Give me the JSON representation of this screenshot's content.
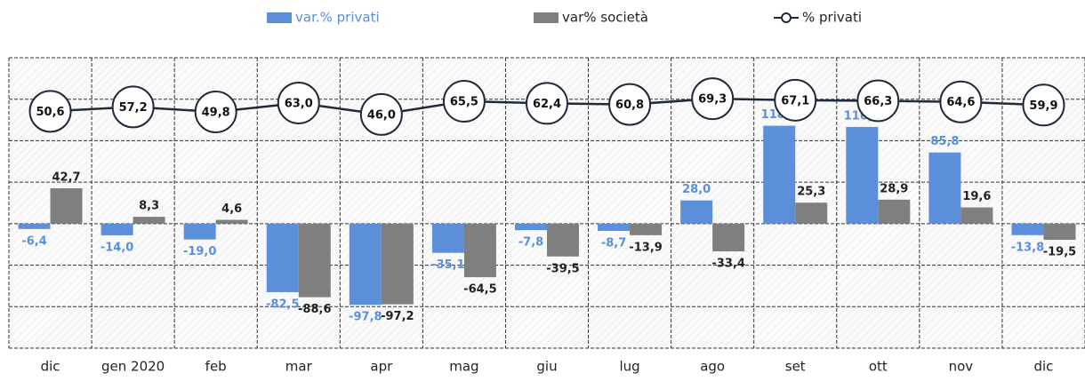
{
  "chart_data": {
    "type": "bar",
    "categories": [
      "dic",
      "gen 2020",
      "feb",
      "mar",
      "apr",
      "mag",
      "giu",
      "lug",
      "ago",
      "set",
      "ott",
      "nov",
      "dic"
    ],
    "series": [
      {
        "name": "var.% privati",
        "color": "#5b8fd9",
        "values": [
          -6.4,
          -14.0,
          -19.0,
          -82.5,
          -97.8,
          -35.1,
          -7.8,
          -8.7,
          28.0,
          118.0,
          116.6,
          85.8,
          -13.8
        ],
        "value_labels": [
          "-6,4",
          "-14,0",
          "-19,0",
          "-82,5",
          "-97,8",
          "-35,1",
          "-7,8",
          "-8,7",
          "28,0",
          "118,0",
          "116,6",
          "85,8",
          "-13,8"
        ]
      },
      {
        "name": "var% società",
        "color": "#7f7f7f",
        "values": [
          42.7,
          8.3,
          4.6,
          -88.6,
          -97.2,
          -64.5,
          -39.5,
          -13.9,
          -33.4,
          25.3,
          28.9,
          19.6,
          -19.5
        ],
        "value_labels": [
          "42,7",
          "8,3",
          "4,6",
          "-88,6",
          "-97,2",
          "-64,5",
          "-39,5",
          "-13,9",
          "-33,4",
          "25,3",
          "28,9",
          "19,6",
          "-19,5"
        ]
      },
      {
        "name": "% privati",
        "type": "line",
        "axis": "y2",
        "color": "#1f2a3a",
        "values": [
          50.6,
          57.2,
          49.8,
          63.0,
          46.0,
          65.5,
          62.4,
          60.8,
          69.3,
          67.1,
          66.3,
          64.6,
          59.9
        ],
        "value_labels": [
          "50,6",
          "57,2",
          "49,8",
          "63,0",
          "46,0",
          "65,5",
          "62,4",
          "60,8",
          "69,3",
          "67,1",
          "66,3",
          "64,6",
          "59,9"
        ]
      }
    ],
    "ylim": [
      -150,
      200
    ],
    "yticks": [
      -150,
      -100,
      -50,
      0,
      50,
      100,
      150,
      200
    ],
    "y2lim": [
      -300,
      130
    ],
    "grid": true
  }
}
